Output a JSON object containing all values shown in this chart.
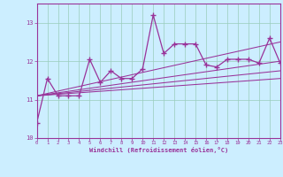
{
  "x_data": [
    0,
    1,
    2,
    3,
    4,
    5,
    6,
    7,
    8,
    9,
    10,
    11,
    12,
    13,
    14,
    15,
    16,
    17,
    18,
    19,
    20,
    21,
    22,
    23
  ],
  "y_main": [
    10.4,
    11.55,
    11.1,
    11.1,
    11.1,
    12.05,
    11.45,
    11.75,
    11.55,
    11.55,
    11.8,
    13.2,
    12.2,
    12.45,
    12.45,
    12.45,
    11.9,
    11.85,
    12.05,
    12.05,
    12.05,
    11.95,
    12.6,
    11.95
  ],
  "regression_lines": [
    {
      "x_start": 0,
      "x_end": 23,
      "y_start": 11.1,
      "y_end": 11.55
    },
    {
      "x_start": 0,
      "x_end": 23,
      "y_start": 11.1,
      "y_end": 11.75
    },
    {
      "x_start": 0,
      "x_end": 23,
      "y_start": 11.1,
      "y_end": 12.0
    },
    {
      "x_start": 0,
      "x_end": 23,
      "y_start": 11.1,
      "y_end": 12.5
    }
  ],
  "xlim": [
    0,
    23
  ],
  "ylim": [
    10.0,
    13.5
  ],
  "yticks": [
    10,
    11,
    12,
    13
  ],
  "xticks": [
    0,
    1,
    2,
    3,
    4,
    5,
    6,
    7,
    8,
    9,
    10,
    11,
    12,
    13,
    14,
    15,
    16,
    17,
    18,
    19,
    20,
    21,
    22,
    23
  ],
  "xlabel": "Windchill (Refroidissement éolien,°C)",
  "line_color": "#993399",
  "bg_color": "#cceeff",
  "grid_color": "#99ccbb",
  "marker": "+",
  "marker_size": 4,
  "line_width": 0.9,
  "regression_color": "#993399",
  "regression_lw": 0.75,
  "tick_color": "#993399",
  "label_color": "#993399",
  "spine_color": "#993399"
}
